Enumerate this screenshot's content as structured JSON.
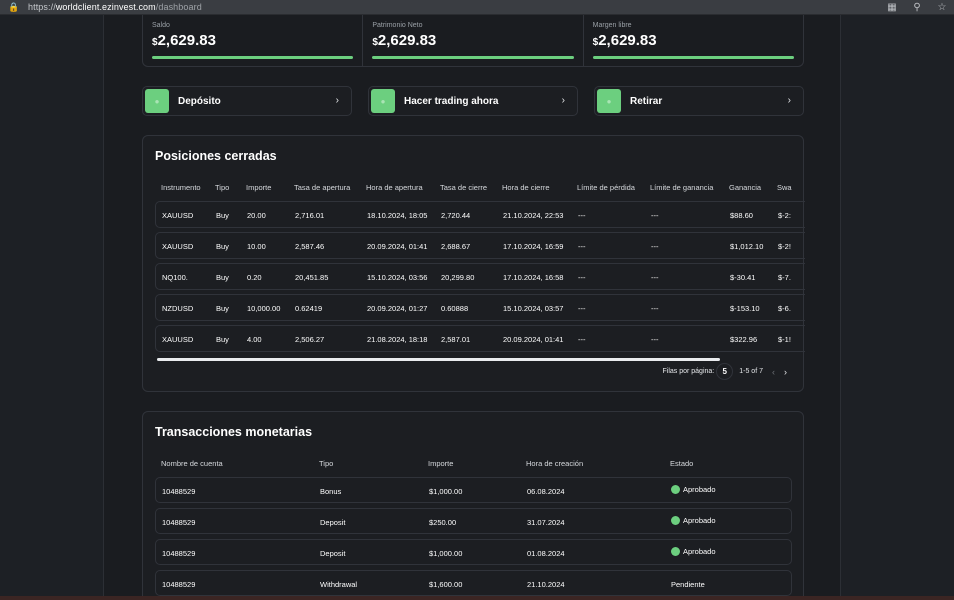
{
  "browser": {
    "url_prefix": "https://",
    "url_host": "worldclient.ezinvest.com",
    "url_path": "/dashboard"
  },
  "balances": [
    {
      "label": "Saldo",
      "currency": "$",
      "value": "2,629.83"
    },
    {
      "label": "Patrimonio Neto",
      "currency": "$",
      "value": "2,629.83"
    },
    {
      "label": "Margen libre",
      "currency": "$",
      "value": "2,629.83"
    }
  ],
  "actions": [
    {
      "label": "Depósito"
    },
    {
      "label": "Hacer trading ahora"
    },
    {
      "label": "Retirar"
    }
  ],
  "closed_positions": {
    "title": "Posiciones cerradas",
    "headers": [
      "Instrumento",
      "Tipo",
      "Importe",
      "Tasa de apertura",
      "Hora de apertura",
      "Tasa de cierre",
      "Hora de cierre",
      "Límite de pérdida",
      "Límite de ganancia",
      "Ganancia",
      "Swa"
    ],
    "rows": [
      [
        "XAUUSD",
        "Buy",
        "20.00",
        "2,716.01",
        "18.10.2024, 18:05",
        "2,720.44",
        "21.10.2024, 22:53",
        "---",
        "---",
        "$88.60",
        "$-2:"
      ],
      [
        "XAUUSD",
        "Buy",
        "10.00",
        "2,587.46",
        "20.09.2024, 01:41",
        "2,688.67",
        "17.10.2024, 16:59",
        "---",
        "---",
        "$1,012.10",
        "$-2!"
      ],
      [
        "NQ100.",
        "Buy",
        "0.20",
        "20,451.85",
        "15.10.2024, 03:56",
        "20,299.80",
        "17.10.2024, 16:58",
        "---",
        "---",
        "$-30.41",
        "$-7."
      ],
      [
        "NZDUSD",
        "Buy",
        "10,000.00",
        "0.62419",
        "20.09.2024, 01:27",
        "0.60888",
        "15.10.2024, 03:57",
        "---",
        "---",
        "$-153.10",
        "$-6."
      ],
      [
        "XAUUSD",
        "Buy",
        "4.00",
        "2,506.27",
        "21.08.2024, 18:18",
        "2,587.01",
        "20.09.2024, 01:41",
        "---",
        "---",
        "$322.96",
        "$-1!"
      ]
    ],
    "rows_per_page_label": "Filas por página:",
    "rows_per_page": "5",
    "range_text": "1-5 of 7"
  },
  "transactions": {
    "title": "Transacciones monetarias",
    "headers": [
      "Nombre de cuenta",
      "Tipo",
      "Importe",
      "Hora de creación",
      "Estado"
    ],
    "rows": [
      [
        "10488529",
        "Bonus",
        "$1,000.00",
        "06.08.2024",
        "Aprobado"
      ],
      [
        "10488529",
        "Deposit",
        "$250.00",
        "31.07.2024",
        "Aprobado"
      ],
      [
        "10488529",
        "Deposit",
        "$1,000.00",
        "01.08.2024",
        "Aprobado"
      ],
      [
        "10488529",
        "Withdrawal",
        "$1,600.00",
        "21.10.2024",
        "Pendiente"
      ]
    ]
  },
  "colors": {
    "accent": "#6ccf7f",
    "background": "#1d2025",
    "border": "#30333a"
  },
  "icons": [
    "lock-icon",
    "reader-mode-icon",
    "zoom-icon",
    "bookmark-star-icon",
    "chevron-right-icon",
    "chevron-left-icon"
  ]
}
